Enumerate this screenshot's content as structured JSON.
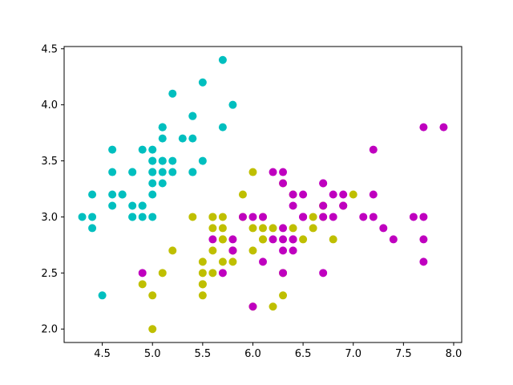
{
  "chart_data": {
    "type": "scatter",
    "title": "",
    "xlabel": "",
    "ylabel": "",
    "xlim": [
      4.12,
      8.08
    ],
    "ylim": [
      1.88,
      4.52
    ],
    "grid": false,
    "legend": "none",
    "x_ticks": [
      "4.5",
      "5.0",
      "5.5",
      "6.0",
      "6.5",
      "7.0",
      "7.5",
      "8.0"
    ],
    "y_ticks": [
      "2.0",
      "2.5",
      "3.0",
      "3.5",
      "4.0",
      "4.5"
    ],
    "series": [
      {
        "color": "#00bfbf",
        "points": [
          [
            5.1,
            3.5
          ],
          [
            4.9,
            3.0
          ],
          [
            4.7,
            3.2
          ],
          [
            4.6,
            3.1
          ],
          [
            5.0,
            3.6
          ],
          [
            5.4,
            3.9
          ],
          [
            4.6,
            3.4
          ],
          [
            5.0,
            3.4
          ],
          [
            4.4,
            2.9
          ],
          [
            4.9,
            3.1
          ],
          [
            5.4,
            3.7
          ],
          [
            4.8,
            3.4
          ],
          [
            4.8,
            3.0
          ],
          [
            4.3,
            3.0
          ],
          [
            5.8,
            4.0
          ],
          [
            5.7,
            4.4
          ],
          [
            5.4,
            3.9
          ],
          [
            5.1,
            3.5
          ],
          [
            5.7,
            3.8
          ],
          [
            5.1,
            3.8
          ],
          [
            5.4,
            3.4
          ],
          [
            5.1,
            3.7
          ],
          [
            4.6,
            3.6
          ],
          [
            5.1,
            3.3
          ],
          [
            4.8,
            3.4
          ],
          [
            5.0,
            3.0
          ],
          [
            5.0,
            3.4
          ],
          [
            5.2,
            3.5
          ],
          [
            5.2,
            3.4
          ],
          [
            4.7,
            3.2
          ],
          [
            4.8,
            3.1
          ],
          [
            5.4,
            3.4
          ],
          [
            5.2,
            4.1
          ],
          [
            5.5,
            4.2
          ],
          [
            4.9,
            3.1
          ],
          [
            5.0,
            3.2
          ],
          [
            5.5,
            3.5
          ],
          [
            4.9,
            3.6
          ],
          [
            4.4,
            3.0
          ],
          [
            5.1,
            3.4
          ],
          [
            5.0,
            3.5
          ],
          [
            4.5,
            2.3
          ],
          [
            4.4,
            3.2
          ],
          [
            5.0,
            3.5
          ],
          [
            5.1,
            3.8
          ],
          [
            4.8,
            3.0
          ],
          [
            5.1,
            3.8
          ],
          [
            4.6,
            3.2
          ],
          [
            5.3,
            3.7
          ],
          [
            5.0,
            3.3
          ]
        ]
      },
      {
        "color": "#bfbf00",
        "points": [
          [
            7.0,
            3.2
          ],
          [
            6.4,
            3.2
          ],
          [
            6.9,
            3.1
          ],
          [
            5.5,
            2.3
          ],
          [
            6.5,
            2.8
          ],
          [
            5.7,
            2.8
          ],
          [
            6.3,
            3.3
          ],
          [
            4.9,
            2.4
          ],
          [
            6.6,
            2.9
          ],
          [
            5.2,
            2.7
          ],
          [
            5.0,
            2.0
          ],
          [
            5.9,
            3.0
          ],
          [
            6.0,
            2.2
          ],
          [
            6.1,
            2.9
          ],
          [
            5.6,
            2.9
          ],
          [
            6.7,
            3.1
          ],
          [
            5.6,
            3.0
          ],
          [
            5.8,
            2.7
          ],
          [
            6.2,
            2.2
          ],
          [
            5.6,
            2.5
          ],
          [
            5.9,
            3.2
          ],
          [
            6.1,
            2.8
          ],
          [
            6.3,
            2.5
          ],
          [
            6.1,
            2.8
          ],
          [
            6.4,
            2.9
          ],
          [
            6.6,
            3.0
          ],
          [
            6.8,
            2.8
          ],
          [
            6.7,
            3.0
          ],
          [
            6.0,
            2.9
          ],
          [
            5.7,
            2.6
          ],
          [
            5.5,
            2.4
          ],
          [
            5.5,
            2.4
          ],
          [
            5.8,
            2.7
          ],
          [
            6.0,
            2.7
          ],
          [
            5.4,
            3.0
          ],
          [
            6.0,
            3.4
          ],
          [
            6.7,
            3.1
          ],
          [
            6.3,
            2.3
          ],
          [
            5.6,
            3.0
          ],
          [
            5.5,
            2.5
          ],
          [
            5.5,
            2.6
          ],
          [
            6.1,
            3.0
          ],
          [
            5.8,
            2.6
          ],
          [
            5.0,
            2.3
          ],
          [
            5.6,
            2.7
          ],
          [
            5.7,
            3.0
          ],
          [
            5.7,
            2.9
          ],
          [
            6.2,
            2.9
          ],
          [
            5.1,
            2.5
          ],
          [
            5.7,
            2.8
          ]
        ]
      },
      {
        "color": "#bf00bf",
        "points": [
          [
            6.3,
            3.3
          ],
          [
            5.8,
            2.7
          ],
          [
            7.1,
            3.0
          ],
          [
            6.3,
            2.9
          ],
          [
            6.5,
            3.0
          ],
          [
            7.6,
            3.0
          ],
          [
            4.9,
            2.5
          ],
          [
            7.3,
            2.9
          ],
          [
            6.7,
            2.5
          ],
          [
            7.2,
            3.6
          ],
          [
            6.5,
            3.2
          ],
          [
            6.4,
            2.7
          ],
          [
            6.8,
            3.0
          ],
          [
            5.7,
            2.5
          ],
          [
            5.8,
            2.8
          ],
          [
            6.4,
            3.2
          ],
          [
            6.5,
            3.0
          ],
          [
            7.7,
            3.8
          ],
          [
            7.7,
            2.6
          ],
          [
            6.0,
            2.2
          ],
          [
            6.9,
            3.2
          ],
          [
            5.6,
            2.8
          ],
          [
            7.7,
            2.8
          ],
          [
            6.3,
            2.7
          ],
          [
            6.7,
            3.3
          ],
          [
            7.2,
            3.2
          ],
          [
            6.2,
            2.8
          ],
          [
            6.1,
            3.0
          ],
          [
            6.4,
            2.8
          ],
          [
            7.2,
            3.0
          ],
          [
            7.4,
            2.8
          ],
          [
            7.9,
            3.8
          ],
          [
            6.4,
            2.8
          ],
          [
            6.3,
            2.8
          ],
          [
            6.1,
            2.6
          ],
          [
            7.7,
            3.0
          ],
          [
            6.3,
            3.4
          ],
          [
            6.4,
            3.1
          ],
          [
            6.0,
            3.0
          ],
          [
            6.9,
            3.1
          ],
          [
            6.7,
            3.1
          ],
          [
            6.9,
            3.1
          ],
          [
            5.8,
            2.7
          ],
          [
            6.8,
            3.2
          ],
          [
            6.7,
            3.3
          ],
          [
            6.7,
            3.0
          ],
          [
            6.3,
            2.5
          ],
          [
            6.5,
            3.0
          ],
          [
            6.2,
            3.4
          ],
          [
            5.9,
            3.0
          ]
        ]
      }
    ]
  }
}
